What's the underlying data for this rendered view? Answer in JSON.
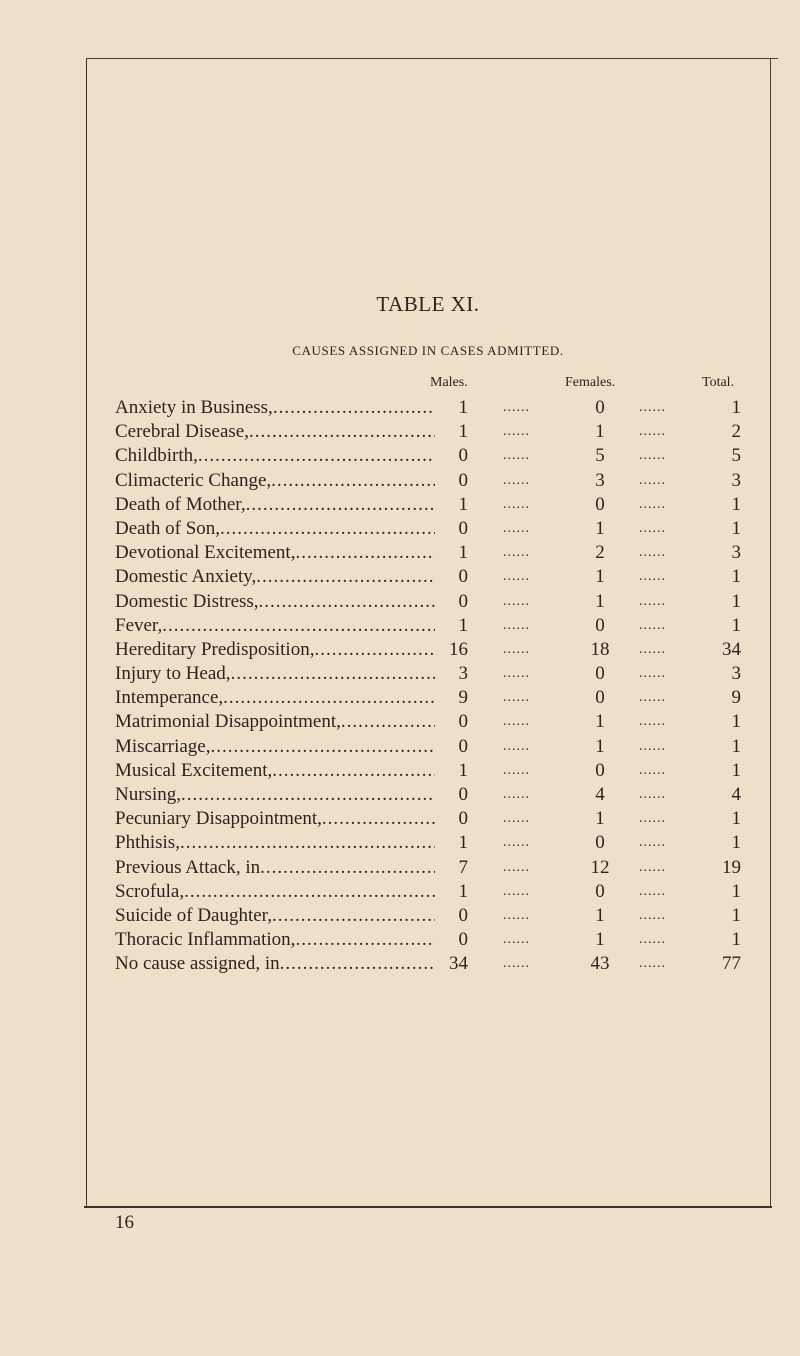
{
  "title": "TABLE XI.",
  "subtitle": "CAUSES ASSIGNED IN CASES ADMITTED.",
  "columns": {
    "males": "Males.",
    "females": "Females.",
    "total": "Total."
  },
  "rows": [
    {
      "cause": "Anxiety in Business,",
      "males": "1",
      "females": "0",
      "total": "1"
    },
    {
      "cause": "Cerebral Disease,",
      "males": "1",
      "females": "1",
      "total": "2"
    },
    {
      "cause": "Childbirth,",
      "males": "0",
      "females": "5",
      "total": "5"
    },
    {
      "cause": "Climacteric Change,",
      "males": "0",
      "females": "3",
      "total": "3"
    },
    {
      "cause": "Death of Mother,",
      "males": "1",
      "females": "0",
      "total": "1"
    },
    {
      "cause": "Death of Son,",
      "males": "0",
      "females": "1",
      "total": "1"
    },
    {
      "cause": "Devotional Excitement,",
      "males": "1",
      "females": "2",
      "total": "3"
    },
    {
      "cause": "Domestic Anxiety,",
      "males": "0",
      "females": "1",
      "total": "1"
    },
    {
      "cause": "Domestic Distress,",
      "males": "0",
      "females": "1",
      "total": "1"
    },
    {
      "cause": "Fever,",
      "males": "1",
      "females": "0",
      "total": "1"
    },
    {
      "cause": "Hereditary Predisposition,",
      "males": "16",
      "females": "18",
      "total": "34"
    },
    {
      "cause": "Injury to Head,",
      "males": "3",
      "females": "0",
      "total": "3"
    },
    {
      "cause": "Intemperance,",
      "males": "9",
      "females": "0",
      "total": "9"
    },
    {
      "cause": "Matrimonial Disappointment,",
      "males": "0",
      "females": "1",
      "total": "1"
    },
    {
      "cause": "Miscarriage,",
      "males": "0",
      "females": "1",
      "total": "1"
    },
    {
      "cause": "Musical Excitement,",
      "males": "1",
      "females": "0",
      "total": "1"
    },
    {
      "cause": "Nursing,",
      "males": "0",
      "females": "4",
      "total": "4"
    },
    {
      "cause": "Pecuniary Disappointment,",
      "males": "0",
      "females": "1",
      "total": "1"
    },
    {
      "cause": "Phthisis,",
      "males": "1",
      "females": "0",
      "total": "1"
    },
    {
      "cause": "Previous Attack, in",
      "males": "7",
      "females": "12",
      "total": "19"
    },
    {
      "cause": "Scrofula,",
      "males": "1",
      "females": "0",
      "total": "1"
    },
    {
      "cause": "Suicide of Daughter,",
      "males": "0",
      "females": "1",
      "total": "1"
    },
    {
      "cause": "Thoracic Inflammation,",
      "males": "0",
      "females": "1",
      "total": "1"
    },
    {
      "cause": "No cause assigned, in",
      "males": "34",
      "females": "43",
      "total": "77"
    }
  ],
  "page_number": "16"
}
